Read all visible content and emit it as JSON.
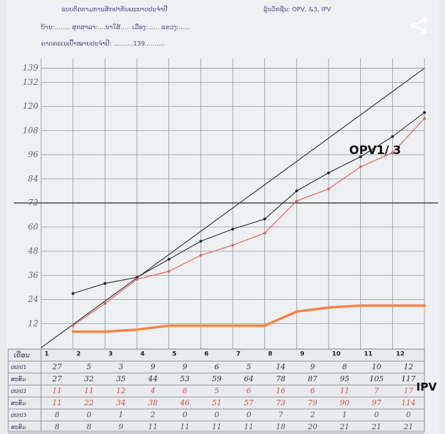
{
  "chart_data": {
    "type": "line",
    "form_title": "ແບບຕິດຕາມການສັກຢາກັນພະຍາດປະຈຳປີ",
    "vaccine_label": "ລຸ້ນວັກຊີນ: OPV, &3, IPV",
    "location_line": "ບ້ານ:........ ສຸກສາລາ:....ນາໃສ້..... ເມືອງ:...... ແຂວງ:......",
    "target_text": "ຄາດຄະເນເປົ້າໝາຍປະຈຳປີ: ..........139..........",
    "x": [
      1,
      2,
      3,
      4,
      5,
      6,
      7,
      8,
      9,
      10,
      11,
      12
    ],
    "xlim": [
      0,
      12
    ],
    "ylim": [
      0,
      144
    ],
    "yticks": [
      12,
      24,
      36,
      48,
      60,
      72,
      84,
      96,
      108,
      120,
      132,
      139
    ],
    "reference_line": 72,
    "target": {
      "x": [
        0,
        12
      ],
      "values": [
        0,
        139
      ],
      "color": "#333333"
    },
    "series": [
      {
        "color": "#333333",
        "monthly": [
          27,
          5,
          3,
          9,
          9,
          6,
          5,
          14,
          9,
          8,
          10,
          12
        ],
        "values": [
          27,
          32,
          35,
          44,
          53,
          59,
          64,
          78,
          87,
          95,
          105,
          117
        ]
      },
      {
        "color": "#e06060",
        "monthly": [
          11,
          11,
          12,
          4,
          8,
          5,
          6,
          16,
          6,
          11,
          7,
          17
        ],
        "values": [
          11,
          22,
          34,
          38,
          46,
          51,
          57,
          73,
          79,
          90,
          97,
          114
        ]
      },
      {
        "color": "#ff8040",
        "monthly": [
          8,
          0,
          1,
          2,
          0,
          0,
          0,
          7,
          2,
          1,
          0,
          0
        ],
        "values": [
          8,
          8,
          9,
          11,
          11,
          11,
          11,
          18,
          20,
          21,
          21,
          21
        ]
      }
    ],
    "table_header": "ເດືອນ",
    "row_labels": [
      "ປປ/ປ1",
      "ສະສົມ",
      "ປປ/ປ2",
      "ສະສົມ",
      "ປປ/ປ3",
      "ສະສົມ"
    ],
    "annotations": [
      "OPV1/ 3",
      "IPV"
    ]
  }
}
